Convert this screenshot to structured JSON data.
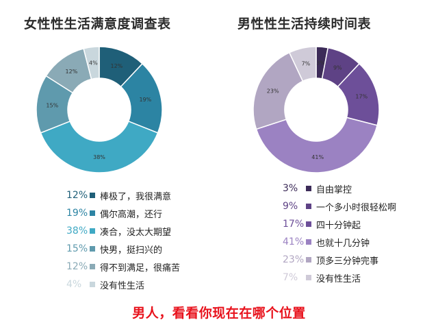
{
  "footer_text": "男人，看看你现在在哪个位置",
  "chart_data": [
    {
      "type": "donut",
      "title": "女性性生活满意度调查表",
      "categories": [
        "棒极了，我很满意",
        "偶尔高潮，还行",
        "凑合，没太大期望",
        "快男，挺扫兴的",
        "得不到满足，很痛苦",
        "没有性生活"
      ],
      "values": [
        12,
        19,
        38,
        15,
        12,
        4
      ],
      "value_labels": [
        "12%",
        "19%",
        "38%",
        "15%",
        "12%",
        "4%"
      ],
      "colors": [
        "#1f5f78",
        "#2c84a3",
        "#3fa9c4",
        "#5f9aad",
        "#8aaab6",
        "#c9d7dd"
      ],
      "legend_placement": "bottom"
    },
    {
      "type": "donut",
      "title": "男性性生活持续时间表",
      "categories": [
        "自由掌控",
        "一个多小时很轻松啊",
        "四十分钟起",
        "也就十几分钟",
        "顶多三分钟完事",
        "没有性生活"
      ],
      "values": [
        3,
        9,
        17,
        41,
        23,
        7
      ],
      "value_labels": [
        "3%",
        "9%",
        "17%",
        "41%",
        "23%",
        "7%"
      ],
      "colors": [
        "#3c2b58",
        "#5e4285",
        "#6d4f99",
        "#9b82c2",
        "#b1a6c2",
        "#cfcad8"
      ],
      "legend_placement": "bottom"
    }
  ]
}
